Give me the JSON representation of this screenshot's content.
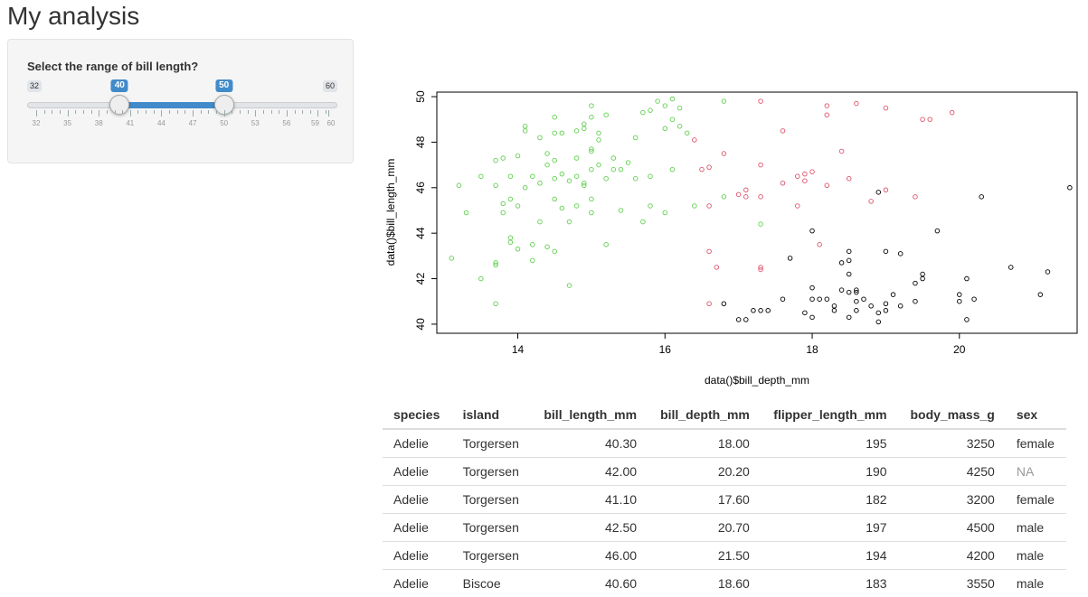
{
  "page_title": "My analysis",
  "slider": {
    "label": "Select the range of bill length?",
    "min": 32,
    "max": 60,
    "from": 40,
    "to": 50,
    "min_label": "32",
    "max_label": "60",
    "from_label": "40",
    "to_label": "50",
    "tick_labels": [
      "32",
      "35",
      "38",
      "41",
      "44",
      "47",
      "50",
      "53",
      "56",
      "59",
      "60"
    ],
    "accent_color": "#428bca"
  },
  "chart_data": {
    "type": "scatter",
    "xlabel": "data()$bill_depth_mm",
    "ylabel": "data()$bill_length_mm",
    "xlim": [
      12.9,
      21.6
    ],
    "ylim": [
      39.6,
      50.2
    ],
    "xticks": [
      14,
      16,
      18,
      20
    ],
    "yticks": [
      40,
      42,
      44,
      46,
      48,
      50
    ],
    "grid": false,
    "marker": "open-circle",
    "series": [
      {
        "color": "#000000",
        "points": [
          [
            18.0,
            40.3
          ],
          [
            17.6,
            41.1
          ],
          [
            18.6,
            40.6
          ],
          [
            17.9,
            40.5
          ],
          [
            18.5,
            40.3
          ],
          [
            17.1,
            40.2
          ],
          [
            19.0,
            40.6
          ],
          [
            16.8,
            40.9
          ],
          [
            18.8,
            40.8
          ],
          [
            17.3,
            40.6
          ],
          [
            17.0,
            40.2
          ],
          [
            19.0,
            40.9
          ],
          [
            18.9,
            40.1
          ],
          [
            19.5,
            42.0
          ],
          [
            20.2,
            41.1
          ],
          [
            18.6,
            41.4
          ],
          [
            20.0,
            41.0
          ],
          [
            18.1,
            41.1
          ],
          [
            18.6,
            41.5
          ],
          [
            18.2,
            41.1
          ],
          [
            18.4,
            41.5
          ],
          [
            19.1,
            41.3
          ],
          [
            18.5,
            41.4
          ],
          [
            19.2,
            40.8
          ],
          [
            18.3,
            40.6
          ],
          [
            18.3,
            40.8
          ],
          [
            19.5,
            42.2
          ],
          [
            21.1,
            41.3
          ],
          [
            20.7,
            42.5
          ],
          [
            19.4,
            41.8
          ],
          [
            18.5,
            42.8
          ],
          [
            18.0,
            41.6
          ],
          [
            18.4,
            42.7
          ],
          [
            17.7,
            42.9
          ],
          [
            19.0,
            43.2
          ],
          [
            18.5,
            42.2
          ],
          [
            19.2,
            43.1
          ],
          [
            18.5,
            43.2
          ],
          [
            20.3,
            45.6
          ],
          [
            20.0,
            41.3
          ],
          [
            18.0,
            44.1
          ],
          [
            18.9,
            45.8
          ],
          [
            19.7,
            44.1
          ],
          [
            21.5,
            46.0
          ],
          [
            18.7,
            41.1
          ],
          [
            20.1,
            42.0
          ],
          [
            21.2,
            42.3
          ],
          [
            17.4,
            40.6
          ],
          [
            18.9,
            40.5
          ],
          [
            18.0,
            41.1
          ],
          [
            19.4,
            41.0
          ],
          [
            17.2,
            40.6
          ],
          [
            20.1,
            40.2
          ],
          [
            18.6,
            41.0
          ]
        ]
      },
      {
        "color": "#df536b",
        "points": [
          [
            16.6,
            40.9
          ],
          [
            16.7,
            42.5
          ],
          [
            17.3,
            42.4
          ],
          [
            16.6,
            43.2
          ],
          [
            17.3,
            42.5
          ],
          [
            18.1,
            43.5
          ],
          [
            17.8,
            45.2
          ],
          [
            18.5,
            46.4
          ],
          [
            19.0,
            45.9
          ],
          [
            18.8,
            45.4
          ],
          [
            17.1,
            45.9
          ],
          [
            17.8,
            46.5
          ],
          [
            18.2,
            46.1
          ],
          [
            17.9,
            46.6
          ],
          [
            17.6,
            46.2
          ],
          [
            17.3,
            45.6
          ],
          [
            16.6,
            45.2
          ],
          [
            17.1,
            45.6
          ],
          [
            17.9,
            46.3
          ],
          [
            18.0,
            46.7
          ],
          [
            17.3,
            47.0
          ],
          [
            18.4,
            47.6
          ],
          [
            16.5,
            46.8
          ],
          [
            16.8,
            47.5
          ],
          [
            16.6,
            46.9
          ],
          [
            17.0,
            45.7
          ],
          [
            17.6,
            48.5
          ],
          [
            16.4,
            48.1
          ],
          [
            18.2,
            49.2
          ],
          [
            18.6,
            49.7
          ],
          [
            19.0,
            49.5
          ],
          [
            19.6,
            49.0
          ],
          [
            19.5,
            49.0
          ],
          [
            18.2,
            49.6
          ],
          [
            19.9,
            49.3
          ],
          [
            17.3,
            49.8
          ],
          [
            19.4,
            45.6
          ]
        ]
      },
      {
        "color": "#61d04f",
        "points": [
          [
            13.1,
            42.9
          ],
          [
            13.3,
            44.9
          ],
          [
            13.5,
            42.0
          ],
          [
            13.7,
            40.9
          ],
          [
            13.7,
            42.6
          ],
          [
            13.7,
            42.7
          ],
          [
            13.8,
            44.9
          ],
          [
            13.9,
            43.8
          ],
          [
            13.9,
            43.6
          ],
          [
            14.0,
            43.3
          ],
          [
            14.2,
            43.5
          ],
          [
            14.2,
            42.8
          ],
          [
            14.3,
            44.5
          ],
          [
            14.4,
            43.4
          ],
          [
            14.5,
            43.2
          ],
          [
            14.5,
            45.5
          ],
          [
            14.6,
            45.1
          ],
          [
            14.7,
            44.5
          ],
          [
            14.7,
            41.7
          ],
          [
            14.8,
            45.2
          ],
          [
            14.8,
            46.5
          ],
          [
            14.9,
            46.2
          ],
          [
            15.0,
            45.5
          ],
          [
            15.0,
            44.9
          ],
          [
            15.2,
            43.5
          ],
          [
            15.4,
            45.0
          ],
          [
            15.7,
            44.5
          ],
          [
            15.8,
            45.2
          ],
          [
            16.0,
            44.9
          ],
          [
            16.4,
            45.2
          ],
          [
            16.8,
            45.6
          ],
          [
            13.2,
            46.1
          ],
          [
            13.5,
            46.5
          ],
          [
            13.7,
            47.2
          ],
          [
            13.7,
            46.1
          ],
          [
            13.8,
            45.3
          ],
          [
            13.9,
            45.5
          ],
          [
            14.0,
            45.2
          ],
          [
            14.1,
            46.0
          ],
          [
            14.2,
            46.5
          ],
          [
            14.3,
            46.2
          ],
          [
            14.4,
            47.5
          ],
          [
            14.5,
            46.4
          ],
          [
            14.5,
            47.2
          ],
          [
            14.6,
            46.6
          ],
          [
            14.7,
            46.3
          ],
          [
            14.8,
            47.3
          ],
          [
            14.9,
            46.1
          ],
          [
            15.0,
            46.8
          ],
          [
            15.1,
            47.0
          ],
          [
            15.2,
            46.4
          ],
          [
            15.3,
            46.8
          ],
          [
            15.4,
            46.8
          ],
          [
            15.6,
            46.4
          ],
          [
            15.8,
            46.5
          ],
          [
            16.1,
            46.8
          ],
          [
            13.9,
            46.5
          ],
          [
            13.8,
            47.3
          ],
          [
            14.4,
            47.0
          ],
          [
            14.1,
            48.7
          ],
          [
            14.1,
            48.5
          ],
          [
            14.3,
            48.2
          ],
          [
            14.5,
            48.4
          ],
          [
            14.5,
            49.1
          ],
          [
            14.8,
            48.5
          ],
          [
            14.9,
            48.6
          ],
          [
            15.0,
            47.7
          ],
          [
            15.0,
            49.1
          ],
          [
            15.0,
            47.6
          ],
          [
            15.1,
            48.4
          ],
          [
            15.2,
            49.2
          ],
          [
            15.3,
            47.3
          ],
          [
            15.5,
            47.1
          ],
          [
            15.6,
            48.2
          ],
          [
            15.7,
            49.3
          ],
          [
            15.8,
            49.4
          ],
          [
            15.9,
            49.8
          ],
          [
            16.0,
            49.6
          ],
          [
            16.0,
            48.6
          ],
          [
            16.1,
            49.0
          ],
          [
            16.1,
            49.9
          ],
          [
            16.2,
            49.5
          ],
          [
            16.3,
            48.4
          ],
          [
            16.8,
            49.8
          ],
          [
            14.0,
            47.4
          ],
          [
            14.6,
            48.4
          ],
          [
            14.9,
            48.8
          ],
          [
            15.0,
            49.6
          ],
          [
            15.1,
            48.1
          ],
          [
            16.2,
            48.7
          ],
          [
            17.3,
            44.4
          ]
        ]
      }
    ]
  },
  "table": {
    "headers": [
      "species",
      "island",
      "bill_length_mm",
      "bill_depth_mm",
      "flipper_length_mm",
      "body_mass_g",
      "sex"
    ],
    "rows": [
      [
        "Adelie",
        "Torgersen",
        "40.30",
        "18.00",
        "195",
        "3250",
        "female"
      ],
      [
        "Adelie",
        "Torgersen",
        "42.00",
        "20.20",
        "190",
        "4250",
        "NA"
      ],
      [
        "Adelie",
        "Torgersen",
        "41.10",
        "17.60",
        "182",
        "3200",
        "female"
      ],
      [
        "Adelie",
        "Torgersen",
        "42.50",
        "20.70",
        "197",
        "4500",
        "male"
      ],
      [
        "Adelie",
        "Torgersen",
        "46.00",
        "21.50",
        "194",
        "4200",
        "male"
      ],
      [
        "Adelie",
        "Biscoe",
        "40.60",
        "18.60",
        "183",
        "3550",
        "male"
      ]
    ]
  }
}
